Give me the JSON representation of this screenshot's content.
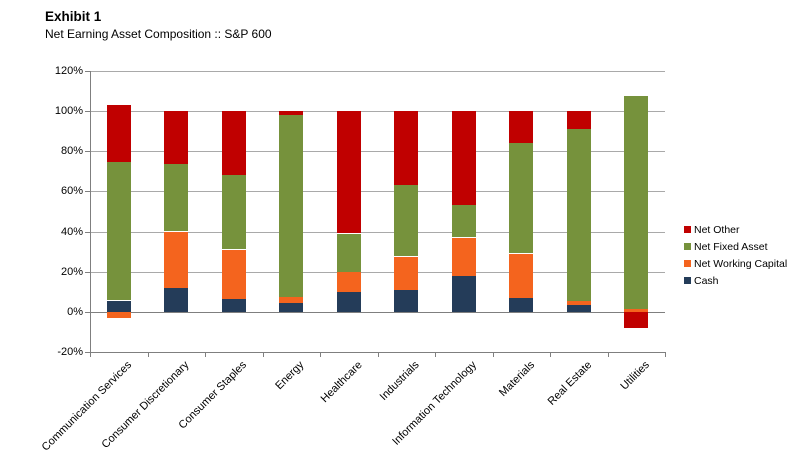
{
  "header": {
    "title": "Exhibit 1",
    "subtitle": "Net Earning Asset Composition :: S&P 600"
  },
  "chart_data": {
    "type": "bar",
    "stacked": true,
    "title": "Exhibit 1",
    "subtitle": "Net Earning Asset Composition :: S&P 600",
    "categories": [
      "Communication Services",
      "Consumer Discretionary",
      "Consumer Staples",
      "Energy",
      "Healthcare",
      "Industrials",
      "Information Technology",
      "Materials",
      "Real Estate",
      "Utilities"
    ],
    "series": [
      {
        "name": "Cash",
        "color": "#243c59",
        "values": [
          5.5,
          12,
          6.5,
          4.5,
          10,
          11,
          18,
          7,
          3.5,
          0
        ]
      },
      {
        "name": "Net Working Capital",
        "color": "#f4641e",
        "values": [
          -3,
          28,
          24.5,
          3,
          10,
          16.5,
          19,
          22,
          2,
          1.5
        ]
      },
      {
        "name": "Net Fixed Asset",
        "color": "#76923c",
        "values": [
          69,
          33.5,
          37,
          90.5,
          19,
          35.5,
          16,
          55,
          85.5,
          106
        ]
      },
      {
        "name": "Net Other",
        "color": "#c00000",
        "values": [
          28.5,
          26.5,
          32,
          2,
          61,
          37,
          47,
          16,
          9,
          -8
        ]
      }
    ],
    "legend": {
      "position": "right",
      "entries": [
        "Net Other",
        "Net Fixed Asset",
        "Net Working Capital",
        "Cash"
      ]
    },
    "ylim": [
      -20,
      120
    ],
    "yticks": [
      {
        "value": 120,
        "label": "120%"
      },
      {
        "value": 100,
        "label": "100%"
      },
      {
        "value": 80,
        "label": "80%"
      },
      {
        "value": 60,
        "label": "60%"
      },
      {
        "value": 40,
        "label": "40%"
      },
      {
        "value": 20,
        "label": "20%"
      },
      {
        "value": 0,
        "label": "0%"
      },
      {
        "value": -20,
        "label": "-20%"
      }
    ],
    "grid": true,
    "xlabel": "",
    "ylabel": ""
  }
}
